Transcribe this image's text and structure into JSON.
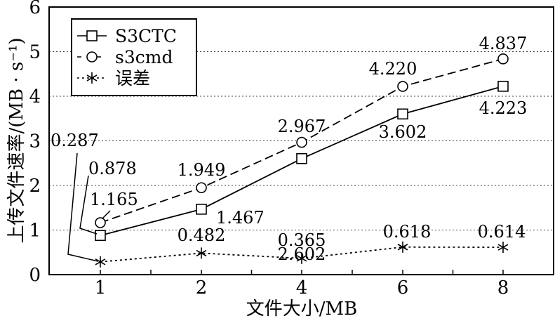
{
  "chart_data": {
    "type": "line",
    "xlabel": "文件大小/MB",
    "ylabel": "上传文件速率/(MB · s⁻¹)",
    "categories": [
      "1",
      "2",
      "4",
      "6",
      "8"
    ],
    "ylim": [
      0,
      6
    ],
    "yticks": [
      "0",
      "1",
      "2",
      "3",
      "4",
      "5",
      "6"
    ],
    "grid": "horizontal dotted",
    "legend_position": "top-left",
    "series": [
      {
        "name": "S3CTC",
        "marker": "square",
        "line": "solid",
        "values": [
          0.878,
          1.467,
          2.602,
          3.602,
          4.223
        ],
        "labels": [
          "0.878",
          "1.467",
          "2.602",
          "3.602",
          "4.223"
        ]
      },
      {
        "name": "s3cmd",
        "marker": "circle",
        "line": "dashed",
        "values": [
          1.165,
          1.949,
          2.967,
          4.22,
          4.837
        ],
        "labels": [
          "1.165",
          "1.949",
          "2.967",
          "4.220",
          "4.837"
        ]
      },
      {
        "name": "误差",
        "marker": "asterisk",
        "line": "dotted",
        "values": [
          0.287,
          0.482,
          0.365,
          0.618,
          0.614
        ],
        "labels": [
          "0.287",
          "0.482",
          "0.365",
          "0.618",
          "0.614"
        ]
      }
    ]
  }
}
